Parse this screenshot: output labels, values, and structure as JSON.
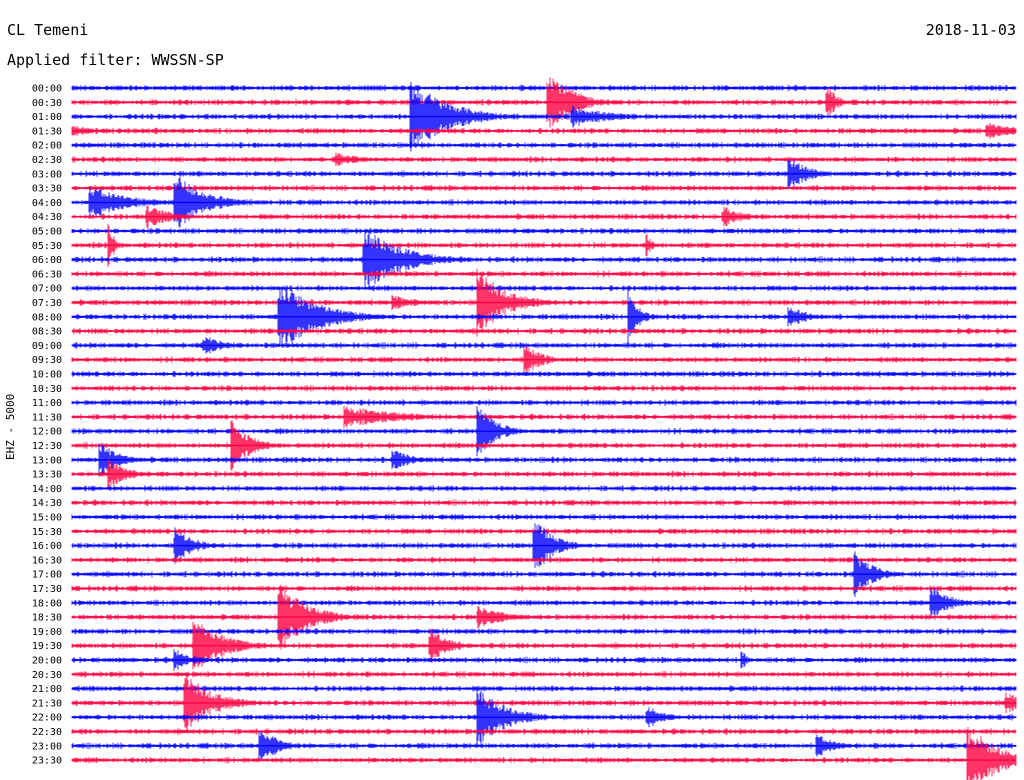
{
  "header": {
    "station": "CL Temeni",
    "filter_label": "Applied filter: WWSSN-SP",
    "date": "2018-11-03",
    "channel": "EHZ - 5000"
  },
  "colors": {
    "even_trace": "#0000ff",
    "odd_trace": "#ff0040",
    "background": "#ffffff"
  },
  "chart_data": {
    "type": "line",
    "title": "CL Temeni",
    "subtitle": "Applied filter: WWSSN-SP",
    "ylabel": "EHZ - 5000",
    "xlabel": "",
    "row_labels": [
      "00:00",
      "00:30",
      "01:00",
      "01:30",
      "02:00",
      "02:30",
      "03:00",
      "03:30",
      "04:00",
      "04:30",
      "05:00",
      "05:30",
      "06:00",
      "06:30",
      "07:00",
      "07:30",
      "08:00",
      "08:30",
      "09:00",
      "09:30",
      "10:00",
      "10:30",
      "11:00",
      "11:30",
      "12:00",
      "12:30",
      "13:00",
      "13:30",
      "14:00",
      "14:30",
      "15:00",
      "15:30",
      "16:00",
      "16:30",
      "17:00",
      "17:30",
      "18:00",
      "18:30",
      "19:00",
      "19:30",
      "20:00",
      "20:30",
      "21:00",
      "21:30",
      "22:00",
      "22:30",
      "23:00",
      "23:30"
    ],
    "minutes_per_row": 30,
    "noise_level": 0.06,
    "events": [
      {
        "row": 2,
        "x": 0.36,
        "amp": 1.0,
        "dur": 0.04
      },
      {
        "row": 2,
        "x": 0.4,
        "amp": 0.25,
        "dur": 0.05
      },
      {
        "row": 1,
        "x": 0.505,
        "amp": 0.9,
        "dur": 0.025
      },
      {
        "row": 2,
        "x": 0.53,
        "amp": 0.3,
        "dur": 0.04
      },
      {
        "row": 1,
        "x": 0.8,
        "amp": 0.5,
        "dur": 0.01
      },
      {
        "row": 3,
        "x": 0.0,
        "amp": 0.2,
        "dur": 0.02
      },
      {
        "row": 3,
        "x": 0.97,
        "amp": 0.25,
        "dur": 0.03
      },
      {
        "row": 6,
        "x": 0.76,
        "amp": 0.5,
        "dur": 0.02
      },
      {
        "row": 5,
        "x": 0.28,
        "amp": 0.2,
        "dur": 0.03
      },
      {
        "row": 8,
        "x": 0.02,
        "amp": 0.45,
        "dur": 0.04
      },
      {
        "row": 8,
        "x": 0.11,
        "amp": 0.8,
        "dur": 0.03
      },
      {
        "row": 9,
        "x": 0.08,
        "amp": 0.3,
        "dur": 0.03
      },
      {
        "row": 9,
        "x": 0.69,
        "amp": 0.3,
        "dur": 0.02
      },
      {
        "row": 11,
        "x": 0.04,
        "amp": 0.7,
        "dur": 0.005
      },
      {
        "row": 11,
        "x": 0.61,
        "amp": 0.3,
        "dur": 0.005
      },
      {
        "row": 12,
        "x": 0.31,
        "amp": 0.9,
        "dur": 0.04
      },
      {
        "row": 16,
        "x": 0.22,
        "amp": 1.0,
        "dur": 0.04
      },
      {
        "row": 16,
        "x": 0.59,
        "amp": 0.8,
        "dur": 0.01
      },
      {
        "row": 16,
        "x": 0.76,
        "amp": 0.3,
        "dur": 0.02
      },
      {
        "row": 15,
        "x": 0.43,
        "amp": 0.9,
        "dur": 0.03
      },
      {
        "row": 15,
        "x": 0.34,
        "amp": 0.2,
        "dur": 0.03
      },
      {
        "row": 18,
        "x": 0.14,
        "amp": 0.3,
        "dur": 0.02
      },
      {
        "row": 19,
        "x": 0.48,
        "amp": 0.4,
        "dur": 0.02
      },
      {
        "row": 23,
        "x": 0.29,
        "amp": 0.3,
        "dur": 0.06
      },
      {
        "row": 24,
        "x": 0.43,
        "amp": 0.7,
        "dur": 0.02
      },
      {
        "row": 25,
        "x": 0.17,
        "amp": 0.7,
        "dur": 0.02
      },
      {
        "row": 26,
        "x": 0.03,
        "amp": 0.5,
        "dur": 0.02
      },
      {
        "row": 26,
        "x": 0.34,
        "amp": 0.3,
        "dur": 0.02
      },
      {
        "row": 27,
        "x": 0.04,
        "amp": 0.4,
        "dur": 0.02
      },
      {
        "row": 32,
        "x": 0.11,
        "amp": 0.5,
        "dur": 0.02
      },
      {
        "row": 32,
        "x": 0.49,
        "amp": 0.8,
        "dur": 0.02
      },
      {
        "row": 34,
        "x": 0.83,
        "amp": 0.6,
        "dur": 0.02
      },
      {
        "row": 36,
        "x": 0.91,
        "amp": 0.5,
        "dur": 0.02
      },
      {
        "row": 37,
        "x": 0.22,
        "amp": 0.9,
        "dur": 0.03
      },
      {
        "row": 37,
        "x": 0.43,
        "amp": 0.3,
        "dur": 0.03
      },
      {
        "row": 39,
        "x": 0.13,
        "amp": 0.8,
        "dur": 0.03
      },
      {
        "row": 39,
        "x": 0.38,
        "amp": 0.5,
        "dur": 0.02
      },
      {
        "row": 40,
        "x": 0.11,
        "amp": 0.3,
        "dur": 0.02
      },
      {
        "row": 40,
        "x": 0.71,
        "amp": 0.3,
        "dur": 0.005
      },
      {
        "row": 43,
        "x": 0.12,
        "amp": 0.8,
        "dur": 0.03
      },
      {
        "row": 43,
        "x": 0.99,
        "amp": 0.3,
        "dur": 0.02
      },
      {
        "row": 44,
        "x": 0.43,
        "amp": 0.8,
        "dur": 0.03
      },
      {
        "row": 44,
        "x": 0.61,
        "amp": 0.3,
        "dur": 0.02
      },
      {
        "row": 46,
        "x": 0.2,
        "amp": 0.5,
        "dur": 0.02
      },
      {
        "row": 46,
        "x": 0.79,
        "amp": 0.3,
        "dur": 0.02
      },
      {
        "row": 47,
        "x": 0.95,
        "amp": 1.0,
        "dur": 0.03
      }
    ]
  }
}
